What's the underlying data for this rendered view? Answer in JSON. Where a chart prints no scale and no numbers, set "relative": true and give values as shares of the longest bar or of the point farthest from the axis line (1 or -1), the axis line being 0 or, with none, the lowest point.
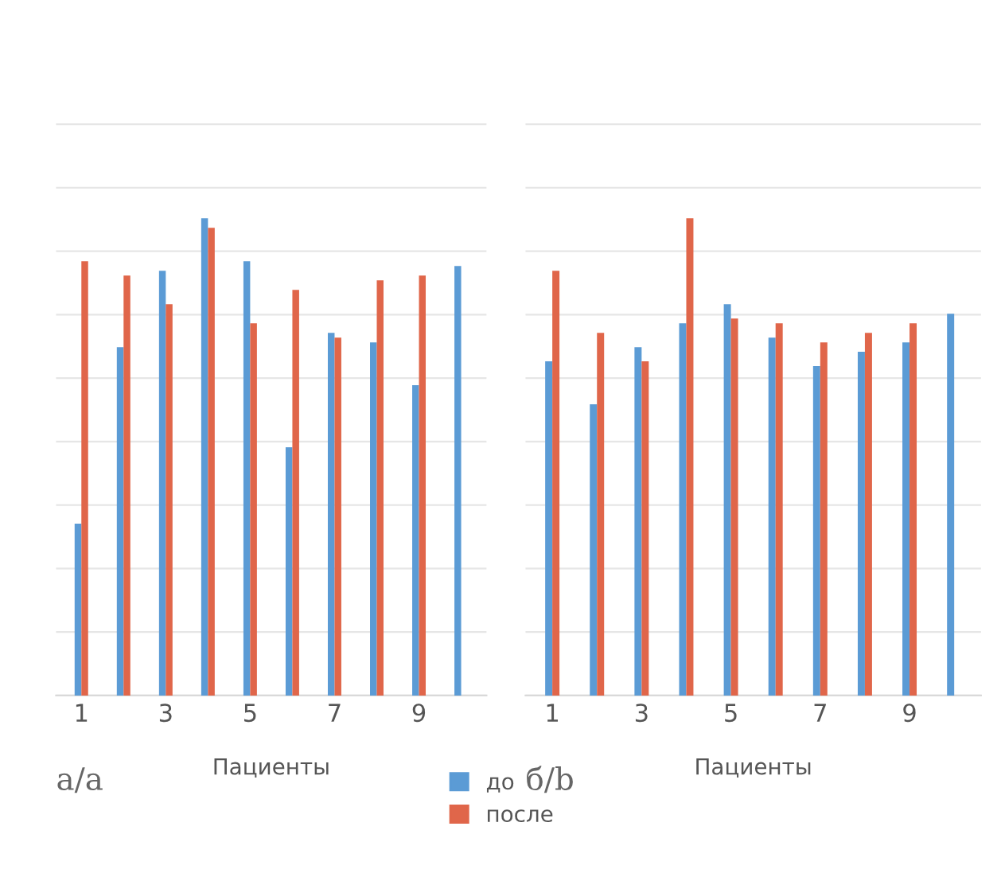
{
  "chart_data": [
    {
      "type": "bar",
      "relative": true,
      "categories": [
        "1",
        null,
        "3",
        null,
        "5",
        null,
        "7",
        null,
        "9",
        null
      ],
      "xlabel": "Пациенты",
      "annotations": [
        "а/a"
      ],
      "grid": "y",
      "legend": "bottom",
      "series": [
        {
          "name": "до",
          "color": "#5b9bd5",
          "values": [
            0.36,
            0.73,
            0.89,
            1,
            0.91,
            0.52,
            0.76,
            0.74,
            0.65,
            0.9
          ]
        },
        {
          "name": "после",
          "color": "#e0664a",
          "values": [
            0.91,
            0.88,
            0.82,
            0.98,
            0.78,
            0.85,
            0.75,
            0.87,
            0.88,
            null
          ]
        }
      ]
    },
    {
      "type": "bar",
      "relative": true,
      "categories": [
        "1",
        null,
        "3",
        null,
        "5",
        null,
        "7",
        null,
        "9",
        null
      ],
      "xlabel": "Пациенты",
      "annotations": [
        "б/b"
      ],
      "grid": "y",
      "series": [
        {
          "color": "#5b9bd5",
          "values": [
            0.7,
            0.61,
            0.73,
            0.78,
            0.82,
            0.75,
            0.69,
            0.72,
            0.74,
            0.8
          ]
        },
        {
          "color": "#e0664a",
          "values": [
            0.89,
            0.76,
            0.7,
            1,
            0.79,
            0.78,
            0.74,
            0.76,
            0.78,
            null
          ]
        }
      ]
    }
  ]
}
